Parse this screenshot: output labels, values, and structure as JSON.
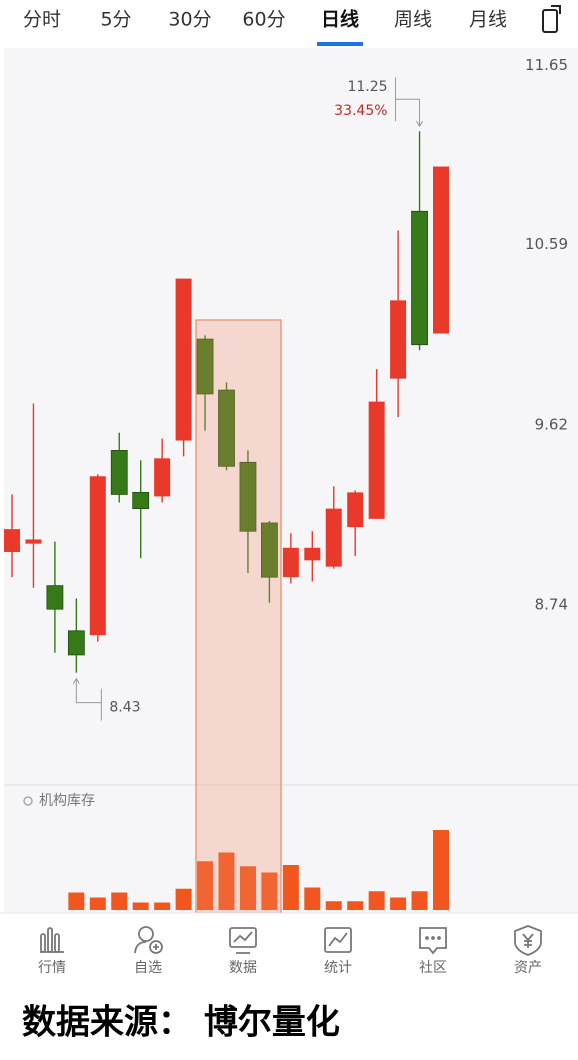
{
  "tabs": [
    "分时",
    "5分",
    "30分",
    "60分",
    "日线",
    "周线",
    "月线"
  ],
  "active_tab": 4,
  "chart_data": [
    {
      "type": "candlestick",
      "log_scale": true,
      "ylim": [
        7.94,
        11.76
      ],
      "yticks": [
        11.65,
        10.59,
        9.62,
        8.74
      ],
      "up_color": "#e8392a",
      "down_color": "#367a17",
      "open": [
        8.99,
        9.03,
        8.83,
        8.62,
        8.6,
        9.49,
        9.28,
        9.26,
        9.54,
        10.07,
        9.8,
        9.43,
        9.13,
        8.87,
        8.95,
        8.92,
        9.11,
        9.15,
        9.86,
        10.78,
        10.1
      ],
      "high": [
        9.27,
        9.73,
        9.04,
        8.77,
        9.37,
        9.58,
        9.44,
        9.55,
        10.4,
        10.09,
        9.84,
        9.49,
        9.14,
        9.08,
        9.09,
        9.31,
        9.29,
        9.91,
        10.67,
        11.25,
        11.04
      ],
      "low": [
        8.87,
        8.82,
        8.52,
        8.43,
        8.57,
        9.23,
        8.96,
        9.23,
        9.46,
        9.59,
        9.39,
        8.89,
        8.75,
        8.84,
        8.85,
        8.91,
        8.97,
        9.15,
        9.66,
        10.01,
        10.1
      ],
      "close": [
        9.1,
        9.05,
        8.72,
        8.51,
        9.36,
        9.27,
        9.2,
        9.45,
        10.4,
        9.78,
        9.41,
        9.09,
        8.87,
        9.01,
        9.01,
        9.2,
        9.28,
        9.74,
        10.28,
        10.04,
        11.04
      ],
      "change_label": "33.45%"
    },
    {
      "type": "bar",
      "title": "机构库存",
      "color": "#f0561d",
      "ylim": [
        0,
        100
      ],
      "values": [
        null,
        null,
        null,
        14,
        10,
        14,
        6,
        6,
        17,
        39,
        46,
        35,
        30,
        36,
        18,
        7,
        7,
        15,
        10,
        15,
        64
      ]
    }
  ],
  "nav": [
    "行情",
    "自选",
    "数据",
    "统计",
    "社区",
    "资产"
  ],
  "footer": "数据来源： 博尔量化"
}
